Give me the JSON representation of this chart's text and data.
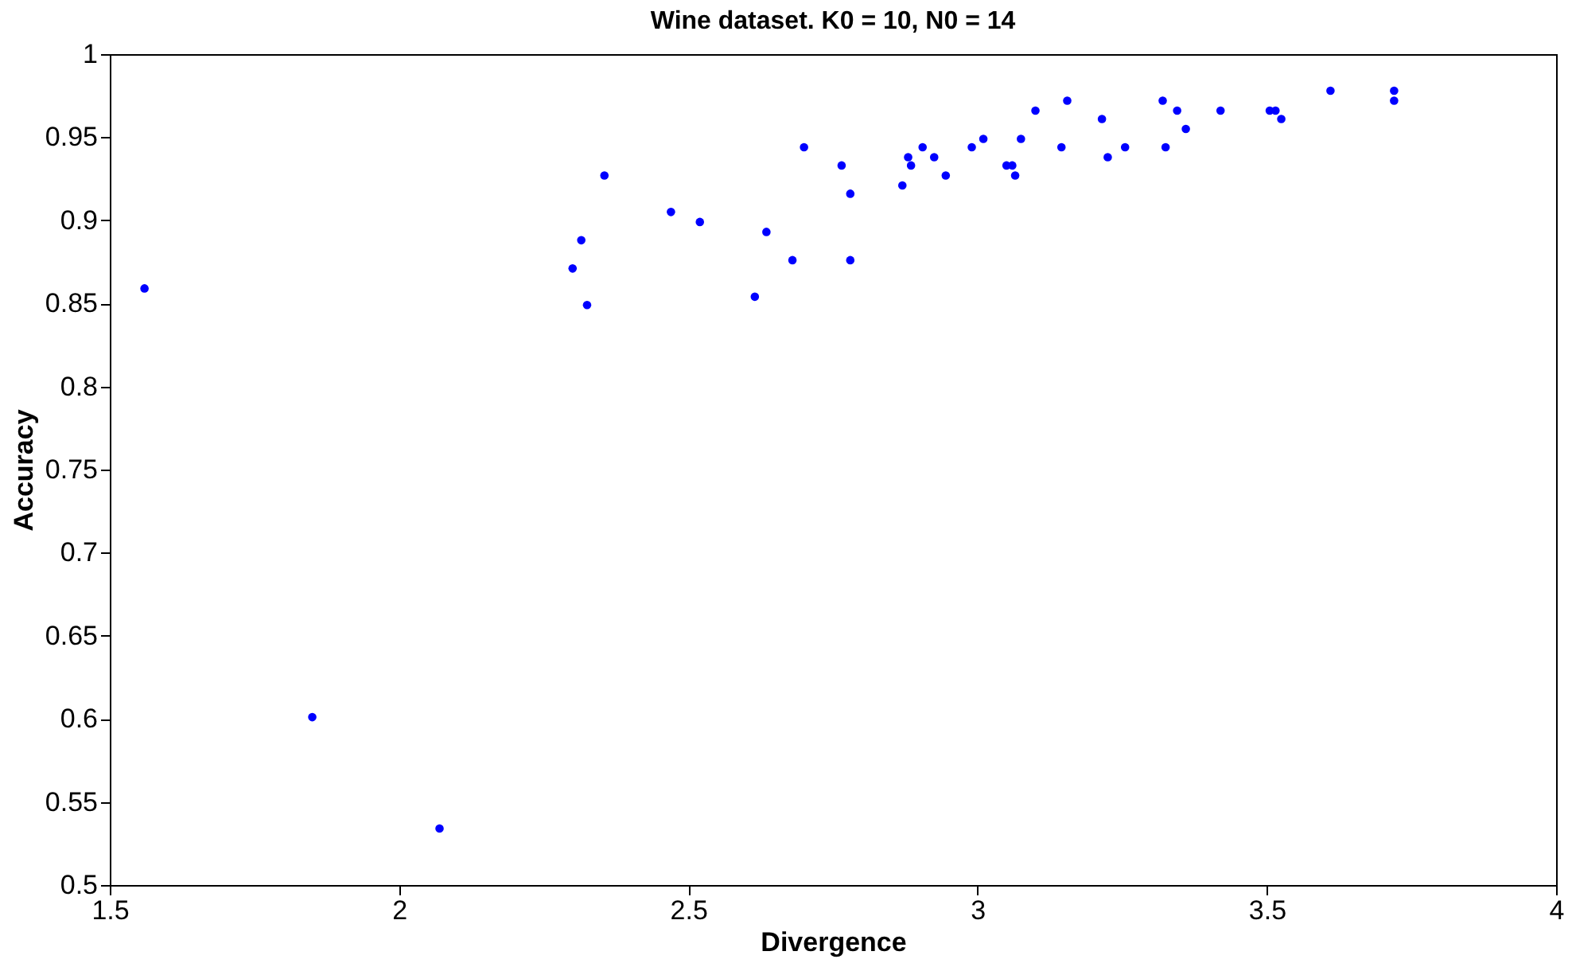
{
  "chart_data": {
    "type": "scatter",
    "title": "Wine dataset. K0 = 10, N0 = 14",
    "xlabel": "Divergence",
    "ylabel": "Accuracy",
    "x": [
      1.56,
      1.85,
      2.07,
      2.3,
      2.315,
      2.325,
      2.355,
      2.47,
      2.52,
      2.615,
      2.635,
      2.68,
      2.7,
      2.765,
      2.78,
      2.78,
      2.87,
      2.88,
      2.885,
      2.905,
      2.925,
      2.945,
      2.99,
      3.01,
      3.05,
      3.06,
      3.065,
      3.075,
      3.1,
      3.145,
      3.155,
      3.215,
      3.225,
      3.255,
      3.32,
      3.325,
      3.345,
      3.36,
      3.42,
      3.505,
      3.515,
      3.525,
      3.61,
      3.72,
      3.72
    ],
    "series": [
      {
        "color": "#0000ff",
        "values": [
          0.859,
          0.601,
          0.534,
          0.871,
          0.888,
          0.849,
          0.927,
          0.905,
          0.899,
          0.854,
          0.893,
          0.876,
          0.944,
          0.933,
          0.876,
          0.916,
          0.921,
          0.938,
          0.933,
          0.944,
          0.938,
          0.927,
          0.944,
          0.949,
          0.933,
          0.933,
          0.927,
          0.949,
          0.966,
          0.944,
          0.972,
          0.961,
          0.938,
          0.944,
          0.972,
          0.944,
          0.966,
          0.955,
          0.966,
          0.966,
          0.966,
          0.961,
          0.978,
          0.972,
          0.978
        ]
      }
    ],
    "xlim": [
      1.5,
      4
    ],
    "xticks": [
      1.5,
      2,
      2.5,
      3,
      3.5,
      4
    ],
    "ylim": [
      0.5,
      1
    ],
    "yticks": [
      0.5,
      0.55,
      0.6,
      0.65,
      0.7,
      0.75,
      0.8,
      0.85,
      0.9,
      0.95,
      1
    ],
    "grid": false,
    "marker": "circle"
  }
}
